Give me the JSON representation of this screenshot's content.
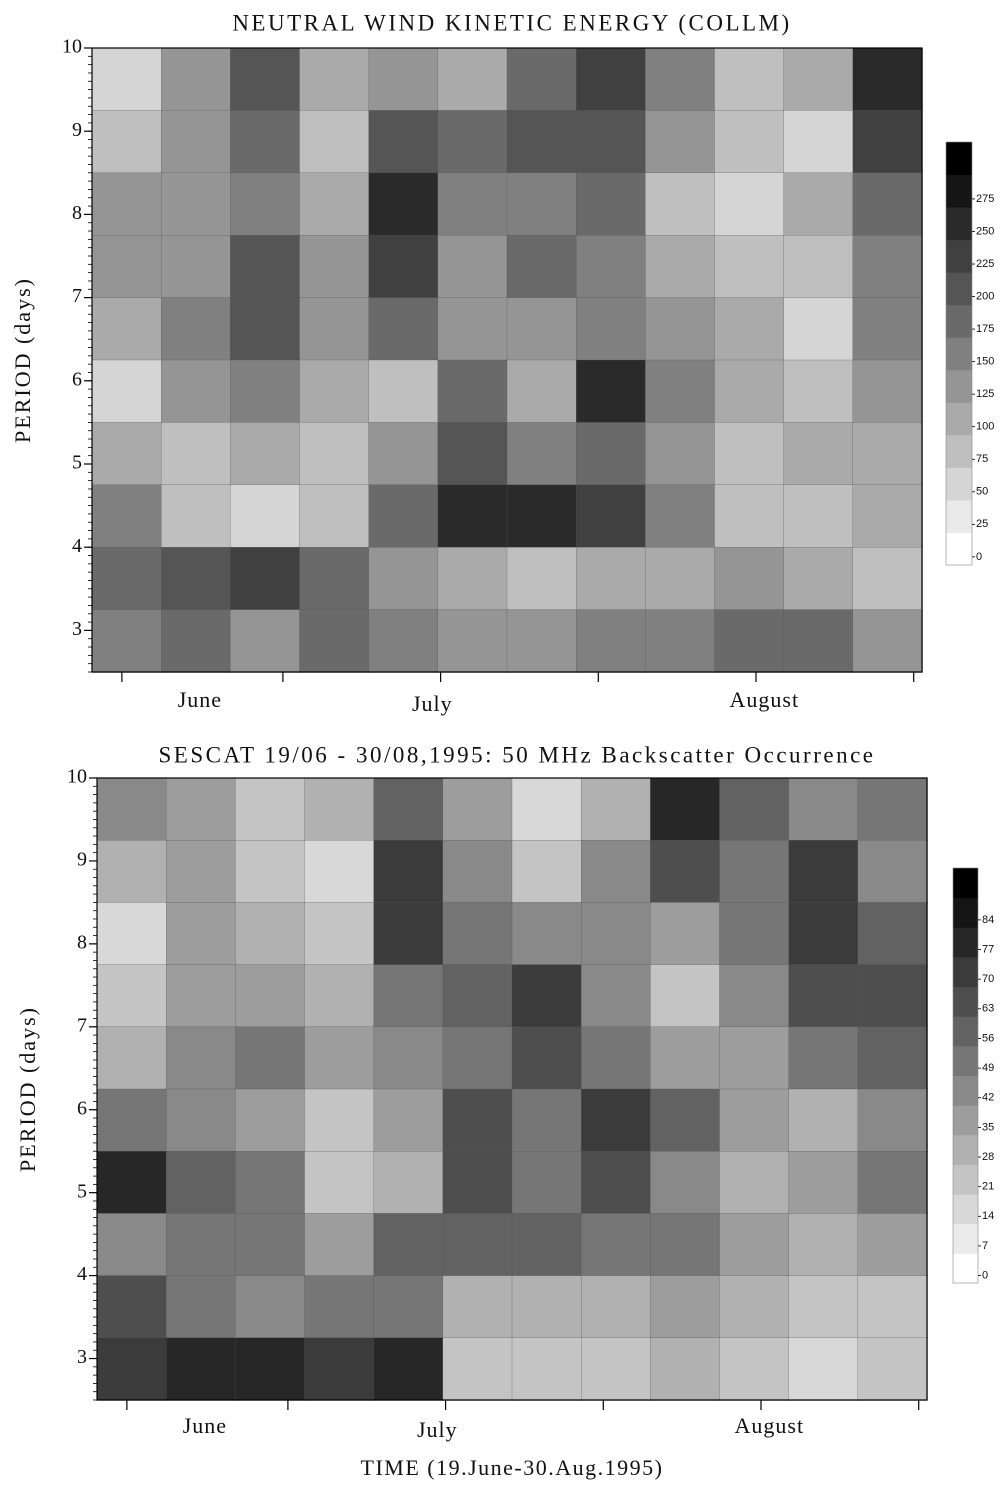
{
  "chart_data": [
    {
      "type": "contour",
      "title": "NEUTRAL WIND KINETIC ENERGY (COLLM)",
      "ylabel": "PERIOD (days)",
      "categories": [
        "June",
        "July",
        "August"
      ],
      "ylim": [
        2.5,
        10
      ],
      "yticks": [
        3,
        4,
        5,
        6,
        7,
        8,
        9,
        10
      ],
      "y": [
        9.625,
        8.875,
        8.125,
        7.375,
        6.625,
        5.875,
        5.125,
        4.375,
        3.625,
        2.875
      ],
      "z": [
        [
          25,
          100,
          175,
          75,
          100,
          75,
          150,
          200,
          125,
          50,
          75,
          225
        ],
        [
          50,
          100,
          150,
          50,
          175,
          150,
          175,
          175,
          100,
          50,
          25,
          200
        ],
        [
          100,
          100,
          125,
          75,
          225,
          125,
          125,
          150,
          50,
          25,
          75,
          150
        ],
        [
          100,
          100,
          175,
          100,
          200,
          100,
          150,
          125,
          75,
          50,
          50,
          125
        ],
        [
          75,
          125,
          175,
          100,
          150,
          100,
          100,
          125,
          100,
          75,
          25,
          125
        ],
        [
          25,
          100,
          125,
          75,
          50,
          150,
          75,
          225,
          125,
          75,
          50,
          100
        ],
        [
          75,
          50,
          75,
          50,
          100,
          175,
          125,
          150,
          100,
          50,
          75,
          75
        ],
        [
          125,
          50,
          25,
          50,
          150,
          225,
          225,
          200,
          125,
          50,
          50,
          75
        ],
        [
          150,
          175,
          200,
          150,
          100,
          75,
          50,
          75,
          75,
          100,
          75,
          50
        ],
        [
          125,
          150,
          100,
          150,
          125,
          100,
          100,
          125,
          125,
          150,
          150,
          100
        ]
      ],
      "levels": [
        0,
        25,
        50,
        75,
        100,
        125,
        150,
        175,
        200,
        225,
        250,
        275
      ]
    },
    {
      "type": "contour",
      "title": "SESCAT 19/06 - 30/08,1995: 50 MHz Backscatter Occurrence",
      "ylabel": "PERIOD (days)",
      "xlabel": "TIME (19.June-30.Aug.1995)",
      "categories": [
        "June",
        "July",
        "August"
      ],
      "ylim": [
        2.5,
        10
      ],
      "yticks": [
        3,
        4,
        5,
        6,
        7,
        8,
        9,
        10
      ],
      "y": [
        9.625,
        8.875,
        8.125,
        7.375,
        6.625,
        5.875,
        5.125,
        4.375,
        3.625,
        2.875
      ],
      "z": [
        [
          35,
          28,
          14,
          21,
          49,
          28,
          7,
          21,
          70,
          49,
          35,
          42
        ],
        [
          21,
          28,
          14,
          7,
          63,
          35,
          14,
          35,
          56,
          42,
          63,
          35
        ],
        [
          7,
          28,
          21,
          14,
          63,
          42,
          35,
          35,
          28,
          42,
          63,
          49
        ],
        [
          14,
          28,
          28,
          21,
          42,
          49,
          63,
          35,
          14,
          35,
          56,
          56
        ],
        [
          21,
          35,
          42,
          28,
          35,
          42,
          56,
          42,
          28,
          28,
          42,
          49
        ],
        [
          42,
          35,
          28,
          14,
          28,
          56,
          42,
          63,
          49,
          28,
          21,
          35
        ],
        [
          70,
          49,
          42,
          14,
          21,
          56,
          42,
          56,
          35,
          21,
          28,
          42
        ],
        [
          35,
          42,
          42,
          28,
          49,
          49,
          49,
          42,
          42,
          28,
          21,
          28
        ],
        [
          56,
          42,
          35,
          42,
          42,
          21,
          21,
          21,
          28,
          21,
          14,
          14
        ],
        [
          63,
          70,
          70,
          63,
          70,
          14,
          14,
          14,
          21,
          14,
          7,
          14
        ]
      ],
      "levels": [
        0,
        7,
        14,
        21,
        28,
        35,
        42,
        49,
        56,
        63,
        70,
        77,
        84
      ]
    }
  ]
}
